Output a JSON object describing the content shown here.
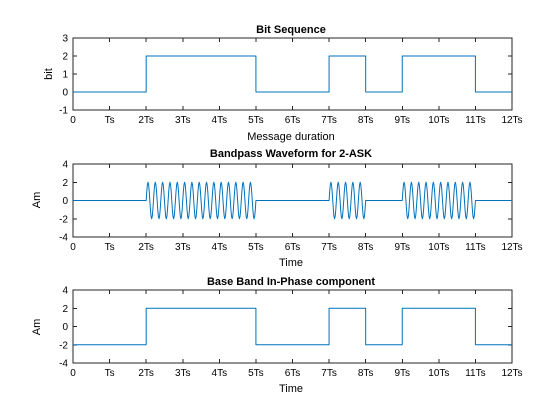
{
  "figure": {
    "background": "#ffffff",
    "line_color": "#0072BD"
  },
  "chart_data": [
    {
      "type": "line",
      "title": "Bit Sequence",
      "xlabel": "Message duration",
      "ylabel": "bit",
      "xlim": [
        0,
        12
      ],
      "ylim": [
        -1,
        3
      ],
      "xticks": [
        0,
        1,
        2,
        3,
        4,
        5,
        6,
        7,
        8,
        9,
        10,
        11,
        12
      ],
      "xticklabels": [
        "0",
        "Ts",
        "2Ts",
        "3Ts",
        "4Ts",
        "5Ts",
        "6Ts",
        "7Ts",
        "8Ts",
        "9Ts",
        "10Ts",
        "11Ts",
        "12Ts"
      ],
      "yticks": [
        -1,
        0,
        1,
        2,
        3
      ],
      "bits": [
        0,
        0,
        1,
        1,
        1,
        0,
        0,
        1,
        0,
        1,
        1,
        0
      ],
      "levels": [
        0,
        2
      ],
      "carrier_cycles_per_bit": 0,
      "grid": false
    },
    {
      "type": "line",
      "title": "Bandpass Waveform for 2-ASK",
      "xlabel": "Time",
      "ylabel": "Am",
      "xlim": [
        0,
        12
      ],
      "ylim": [
        -4,
        4
      ],
      "xticks": [
        0,
        1,
        2,
        3,
        4,
        5,
        6,
        7,
        8,
        9,
        10,
        11,
        12
      ],
      "xticklabels": [
        "0",
        "Ts",
        "2Ts",
        "3Ts",
        "4Ts",
        "5Ts",
        "6Ts",
        "7Ts",
        "8Ts",
        "9Ts",
        "10Ts",
        "11Ts",
        "12Ts"
      ],
      "yticks": [
        -4,
        -2,
        0,
        2,
        4
      ],
      "bits": [
        0,
        0,
        1,
        1,
        1,
        0,
        0,
        1,
        0,
        1,
        1,
        0
      ],
      "levels": [
        0,
        2
      ],
      "carrier_cycles_per_bit": 5,
      "grid": false
    },
    {
      "type": "line",
      "title": "Base Band In-Phase component",
      "xlabel": "Time",
      "ylabel": "Am",
      "xlim": [
        0,
        12
      ],
      "ylim": [
        -4,
        4
      ],
      "xticks": [
        0,
        1,
        2,
        3,
        4,
        5,
        6,
        7,
        8,
        9,
        10,
        11,
        12
      ],
      "xticklabels": [
        "0",
        "Ts",
        "2Ts",
        "3Ts",
        "4Ts",
        "5Ts",
        "6Ts",
        "7Ts",
        "8Ts",
        "9Ts",
        "10Ts",
        "11Ts",
        "12Ts"
      ],
      "yticks": [
        -4,
        -2,
        0,
        2,
        4
      ],
      "bits": [
        0,
        0,
        1,
        1,
        1,
        0,
        0,
        1,
        0,
        1,
        1,
        0
      ],
      "levels": [
        -2,
        2
      ],
      "carrier_cycles_per_bit": 0,
      "grid": false
    }
  ]
}
